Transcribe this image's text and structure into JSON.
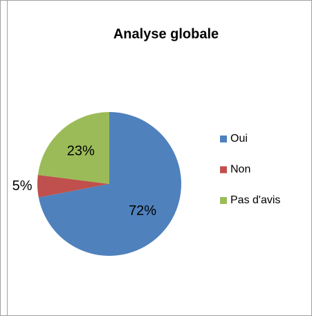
{
  "chart_data": {
    "type": "pie",
    "title": "Analyse globale",
    "categories": [
      "Oui",
      "Non",
      "Pas d'avis"
    ],
    "values": [
      72,
      5,
      23
    ],
    "value_labels": [
      "72%",
      "5%",
      "23%"
    ],
    "colors": [
      "#4f81bd",
      "#c0504d",
      "#9bbb59"
    ],
    "legend": "right"
  }
}
